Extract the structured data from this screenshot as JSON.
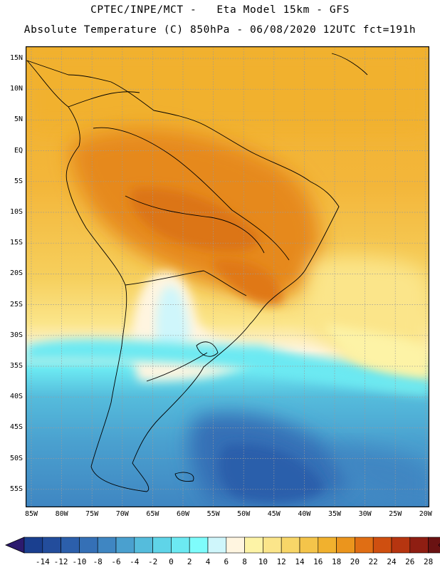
{
  "header": {
    "line1": "CPTEC/INPE/MCT -   Eta Model 15km - GFS",
    "line2": "Absolute Temperature (C) 850hPa - 06/08/2020 12UTC fct=191h"
  },
  "axes": {
    "lat_labels": [
      "15N",
      "10N",
      "5N",
      "EQ",
      "5S",
      "10S",
      "15S",
      "20S",
      "25S",
      "30S",
      "35S",
      "40S",
      "45S",
      "50S",
      "55S"
    ],
    "lon_labels": [
      "85W",
      "80W",
      "75W",
      "70W",
      "65W",
      "60W",
      "55W",
      "50W",
      "45W",
      "40W",
      "35W",
      "30W",
      "25W",
      "20W"
    ]
  },
  "colorbar": {
    "labels": [
      "-14",
      "-12",
      "-10",
      "-8",
      "-6",
      "-4",
      "-2",
      "0",
      "2",
      "4",
      "6",
      "8",
      "10",
      "12",
      "14",
      "16",
      "18",
      "20",
      "22",
      "24",
      "26",
      "28"
    ],
    "colors": [
      "#1a3f8f",
      "#234d9c",
      "#2c5fab",
      "#3570b6",
      "#3f86c2",
      "#4aa0cf",
      "#55bcdc",
      "#5fd4e8",
      "#6ce9f2",
      "#7efcfc",
      "#cff6fb",
      "#fff5e0",
      "#fdf3a6",
      "#fbe58a",
      "#f8d668",
      "#f4c44a",
      "#f1b12e",
      "#eb951d",
      "#e06e14",
      "#cf4f10",
      "#b63510",
      "#8f1e12",
      "#6a1212"
    ],
    "left_color": "#2c1a6e",
    "right_color": "#7a0a2a"
  }
}
